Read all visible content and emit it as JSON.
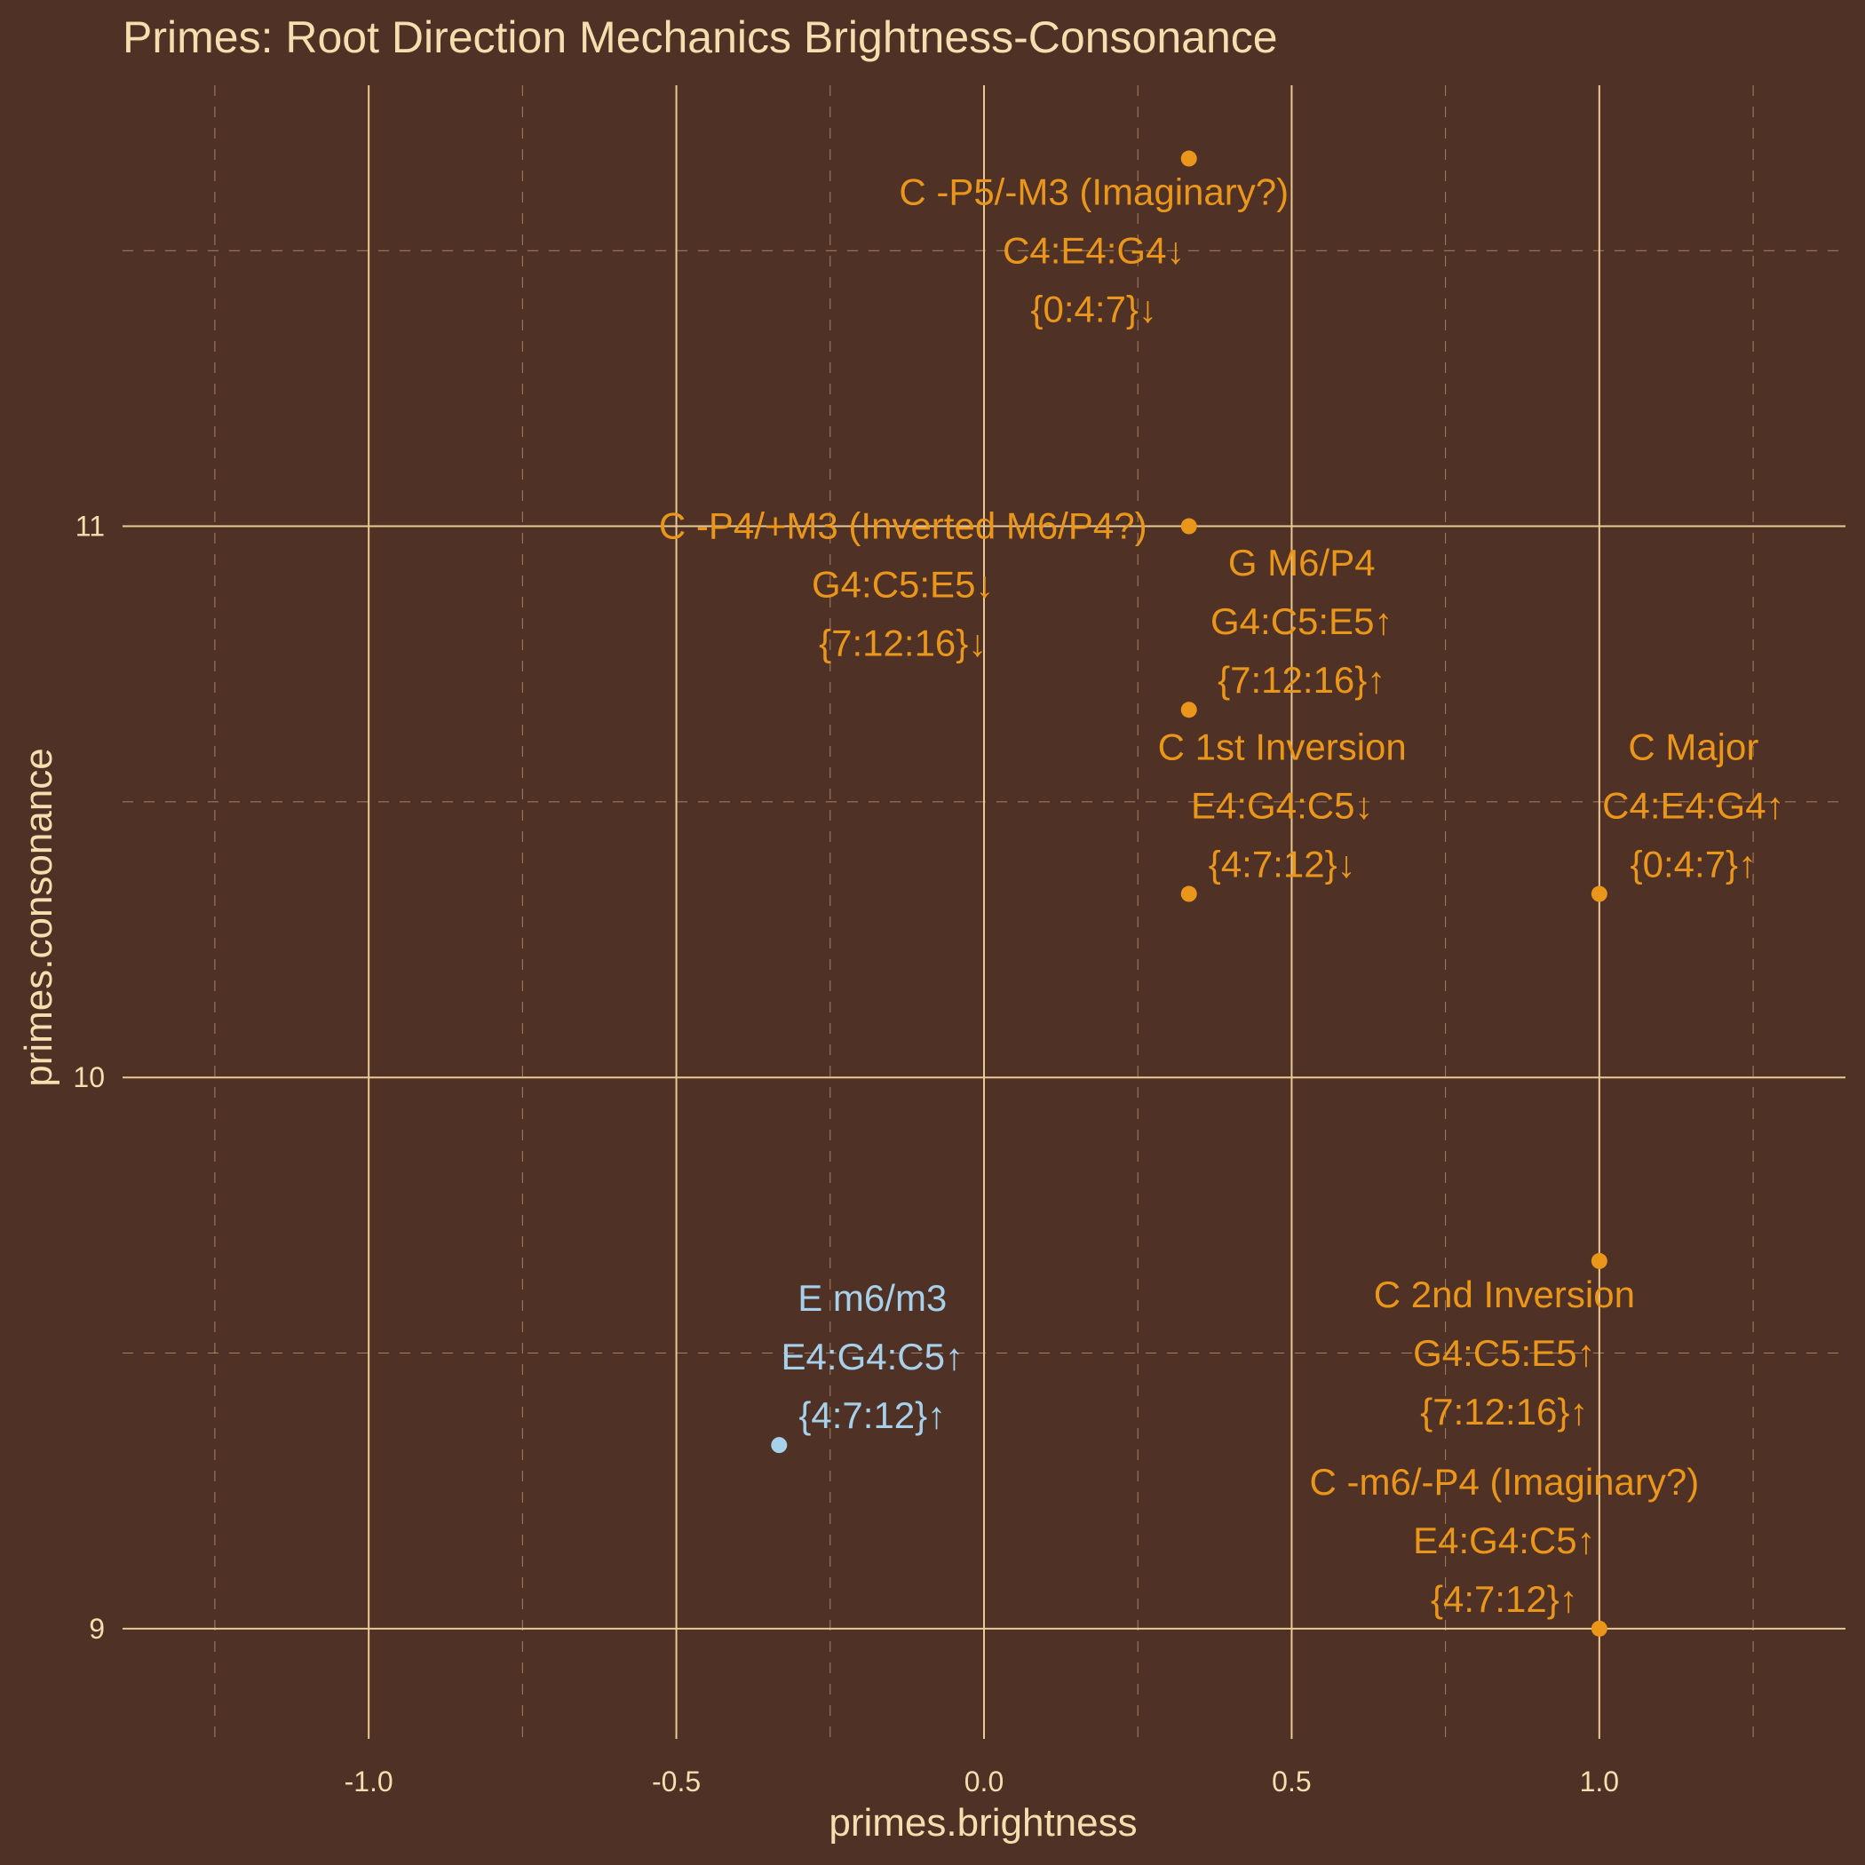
{
  "colors": {
    "background": "#4f3126",
    "text": "#f6deaf",
    "grid": "#e9c994",
    "orange": "#ea961a",
    "blue": "#a7d0ea"
  },
  "chart_data": {
    "type": "scatter",
    "title": "Primes: Root Direction Mechanics Brightness-Consonance",
    "xlabel": "primes.brightness",
    "ylabel": "primes.consonance",
    "xlim": [
      -1.4,
      1.4
    ],
    "ylim": [
      8.8,
      11.8
    ],
    "x_ticks": [
      -1.0,
      -0.5,
      0.0,
      0.5,
      1.0
    ],
    "x_tick_labels": [
      "-1.0",
      "-0.5",
      "0.0",
      "0.5",
      "1.0"
    ],
    "y_ticks": [
      9,
      10,
      11
    ],
    "y_tick_labels": [
      "9",
      "10",
      "11"
    ],
    "grid": true,
    "points": [
      {
        "x": 0.333,
        "y": 11.667,
        "color": "orange",
        "lines": [
          "C -P5/-M3 (Imaginary?)",
          "C4:E4:G4↓",
          "{0:4:7}↓"
        ]
      },
      {
        "x": 0.333,
        "y": 11.0,
        "color": "orange",
        "lines": [
          "C -P4/+M3 (Inverted M6/P4?)",
          "G4:C5:E5↓",
          "{7:12:16}↓"
        ]
      },
      {
        "x": 0.333,
        "y": 10.667,
        "color": "orange",
        "lines": [
          "G M6/P4",
          "G4:C5:E5↑",
          "{7:12:16}↑"
        ]
      },
      {
        "x": 0.333,
        "y": 10.333,
        "color": "orange",
        "lines": [
          "C 1st Inversion",
          "E4:G4:C5↓",
          "{4:7:12}↓"
        ]
      },
      {
        "x": 1.0,
        "y": 10.333,
        "color": "orange",
        "lines": [
          "C Major",
          "C4:E4:G4↑",
          "{0:4:7}↑"
        ]
      },
      {
        "x": 1.0,
        "y": 9.667,
        "color": "orange",
        "lines": [
          "C 2nd Inversion",
          "G4:C5:E5↑",
          "{7:12:16}↑"
        ]
      },
      {
        "x": 1.0,
        "y": 9.0,
        "color": "orange",
        "lines": [
          "C -m6/-P4 (Imaginary?)",
          "E4:G4:C5↑",
          "{4:7:12}↑"
        ]
      },
      {
        "x": -0.333,
        "y": 9.333,
        "color": "blue",
        "lines": [
          "E m6/m3",
          "E4:G4:C5↑",
          "{4:7:12}↑"
        ]
      }
    ]
  }
}
